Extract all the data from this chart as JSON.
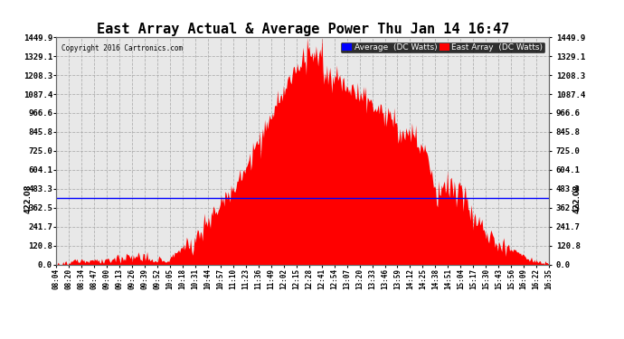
{
  "title": "East Array Actual & Average Power Thu Jan 14 16:47",
  "copyright": "Copyright 2016 Cartronics.com",
  "legend_avg": "Average  (DC Watts)",
  "legend_east": "East Array  (DC Watts)",
  "yticks": [
    0.0,
    120.8,
    241.7,
    362.5,
    483.3,
    604.1,
    725.0,
    845.8,
    966.6,
    1087.4,
    1208.3,
    1329.1,
    1449.9
  ],
  "avg_line_value": 422.08,
  "xtick_labels": [
    "08:04",
    "08:20",
    "08:34",
    "08:47",
    "09:00",
    "09:13",
    "09:26",
    "09:39",
    "09:52",
    "10:05",
    "10:18",
    "10:31",
    "10:44",
    "10:57",
    "11:10",
    "11:23",
    "11:36",
    "11:49",
    "12:02",
    "12:15",
    "12:28",
    "12:41",
    "12:54",
    "13:07",
    "13:20",
    "13:33",
    "13:46",
    "13:59",
    "14:12",
    "14:25",
    "14:38",
    "14:51",
    "15:04",
    "15:17",
    "15:30",
    "15:43",
    "15:56",
    "16:09",
    "16:22",
    "16:35"
  ],
  "bg_color": "#ffffff",
  "plot_bg_color": "#e8e8e8",
  "grid_color": "#aaaaaa",
  "fill_color": "#ff0000",
  "avg_line_color": "#0000ff",
  "avg_legend_bg": "#0000ff",
  "east_legend_bg": "#ff0000",
  "title_fontsize": 11,
  "annot_fontsize": 7
}
